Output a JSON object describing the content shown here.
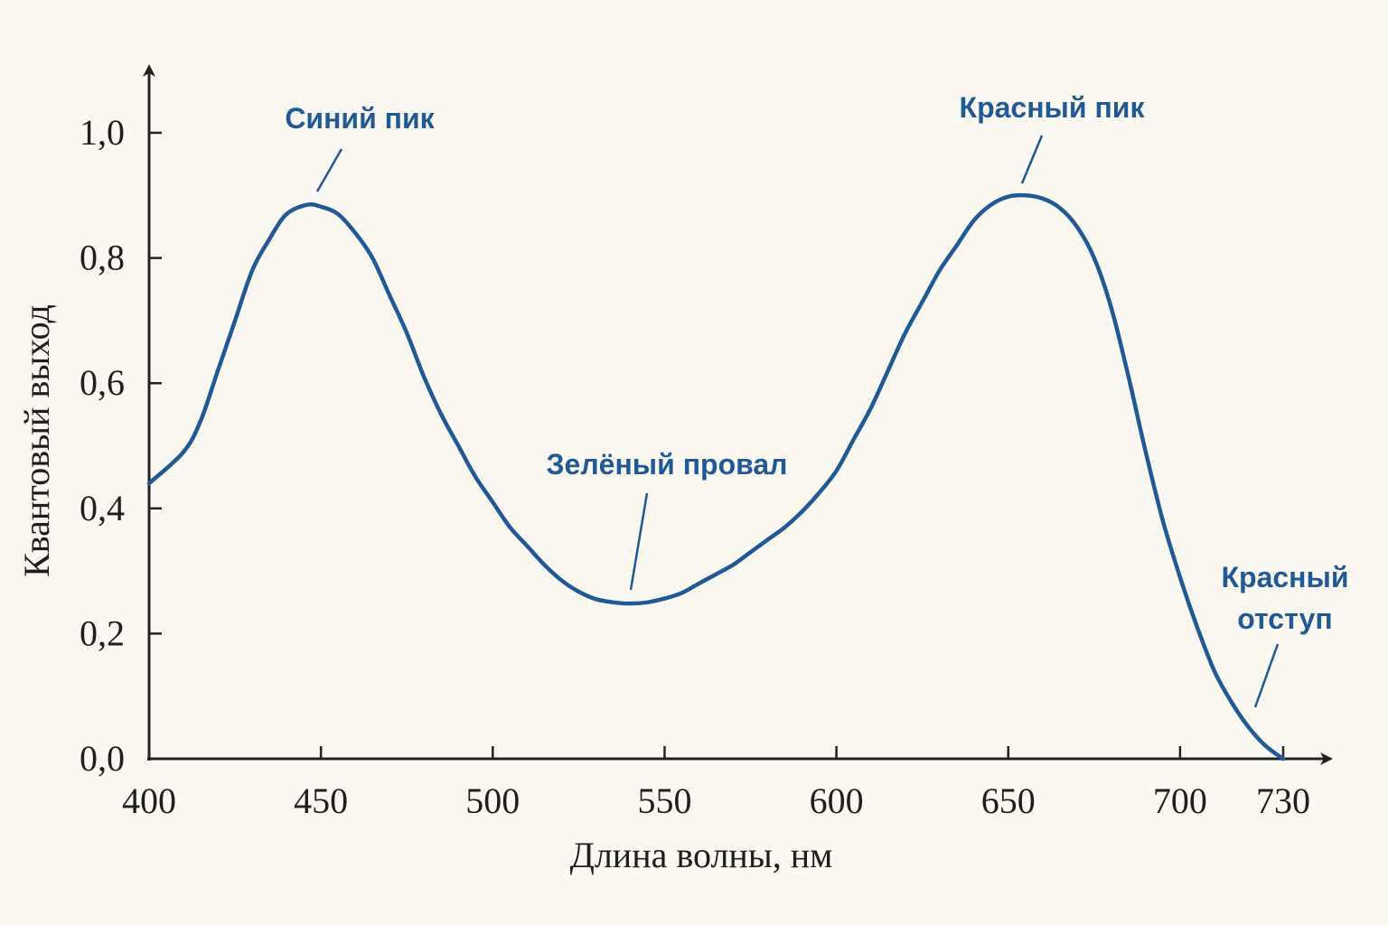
{
  "colors": {
    "background": "#fbf8f1",
    "axis": "#222222",
    "curve": "#1f5a96",
    "annotation": "#1f5a96"
  },
  "chart_data": {
    "type": "line",
    "title": "",
    "xlabel": "Длина волны, нм",
    "ylabel": "Квантовый выход",
    "xlim": [
      400,
      730
    ],
    "ylim": [
      0,
      1.0
    ],
    "x_ticks": [
      {
        "value": 400,
        "label": "400"
      },
      {
        "value": 450,
        "label": "450"
      },
      {
        "value": 500,
        "label": "500"
      },
      {
        "value": 550,
        "label": "550"
      },
      {
        "value": 600,
        "label": "600"
      },
      {
        "value": 650,
        "label": "650"
      },
      {
        "value": 700,
        "label": "700"
      },
      {
        "value": 730,
        "label": "730"
      }
    ],
    "y_ticks": [
      {
        "value": 0.0,
        "label": "0,0"
      },
      {
        "value": 0.2,
        "label": "0,2"
      },
      {
        "value": 0.4,
        "label": "0,4"
      },
      {
        "value": 0.6,
        "label": "0,6"
      },
      {
        "value": 0.8,
        "label": "0,8"
      },
      {
        "value": 1.0,
        "label": "1,0"
      }
    ],
    "grid": false,
    "series": [
      {
        "color": "#1f5a96",
        "points": [
          [
            400,
            0.44
          ],
          [
            410,
            0.49
          ],
          [
            415,
            0.54
          ],
          [
            420,
            0.62
          ],
          [
            425,
            0.7
          ],
          [
            430,
            0.78
          ],
          [
            435,
            0.83
          ],
          [
            440,
            0.87
          ],
          [
            446,
            0.885
          ],
          [
            450,
            0.882
          ],
          [
            455,
            0.87
          ],
          [
            460,
            0.84
          ],
          [
            465,
            0.8
          ],
          [
            470,
            0.74
          ],
          [
            475,
            0.68
          ],
          [
            480,
            0.61
          ],
          [
            485,
            0.55
          ],
          [
            490,
            0.5
          ],
          [
            495,
            0.45
          ],
          [
            500,
            0.41
          ],
          [
            505,
            0.37
          ],
          [
            510,
            0.34
          ],
          [
            515,
            0.31
          ],
          [
            520,
            0.285
          ],
          [
            525,
            0.267
          ],
          [
            530,
            0.255
          ],
          [
            535,
            0.25
          ],
          [
            540,
            0.248
          ],
          [
            545,
            0.25
          ],
          [
            550,
            0.256
          ],
          [
            555,
            0.265
          ],
          [
            560,
            0.28
          ],
          [
            565,
            0.295
          ],
          [
            570,
            0.31
          ],
          [
            575,
            0.33
          ],
          [
            580,
            0.35
          ],
          [
            585,
            0.37
          ],
          [
            590,
            0.395
          ],
          [
            595,
            0.425
          ],
          [
            600,
            0.46
          ],
          [
            605,
            0.51
          ],
          [
            610,
            0.56
          ],
          [
            615,
            0.62
          ],
          [
            620,
            0.68
          ],
          [
            625,
            0.73
          ],
          [
            630,
            0.78
          ],
          [
            635,
            0.82
          ],
          [
            640,
            0.86
          ],
          [
            645,
            0.885
          ],
          [
            650,
            0.898
          ],
          [
            655,
            0.9
          ],
          [
            660,
            0.895
          ],
          [
            665,
            0.88
          ],
          [
            670,
            0.85
          ],
          [
            675,
            0.8
          ],
          [
            680,
            0.72
          ],
          [
            685,
            0.61
          ],
          [
            690,
            0.49
          ],
          [
            695,
            0.38
          ],
          [
            700,
            0.29
          ],
          [
            705,
            0.21
          ],
          [
            710,
            0.14
          ],
          [
            715,
            0.09
          ],
          [
            720,
            0.05
          ],
          [
            725,
            0.02
          ],
          [
            730,
            0.0
          ]
        ]
      }
    ],
    "annotations": [
      {
        "name": "blue-peak",
        "text_lines": [
          "Синий пик"
        ],
        "x": 447,
        "y": 0.89,
        "anchor": "tick"
      },
      {
        "name": "red-peak",
        "text_lines": [
          "Красный пик"
        ],
        "x": 652,
        "y": 0.91,
        "anchor": "tick"
      },
      {
        "name": "green-dip",
        "text_lines": [
          "Зелёный провал"
        ],
        "x": 539,
        "y": 0.27,
        "anchor": "tick"
      },
      {
        "name": "red-edge",
        "text_lines": [
          "Красный",
          "отступ"
        ],
        "x": 724,
        "y": 0.08,
        "anchor": "tick"
      }
    ]
  }
}
